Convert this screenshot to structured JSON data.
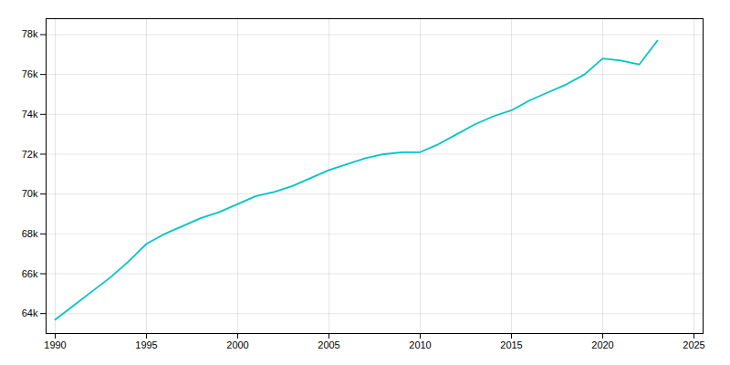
{
  "chart_data": {
    "type": "line",
    "x": [
      1990,
      1991,
      1992,
      1993,
      1994,
      1995,
      1996,
      1997,
      1998,
      1999,
      2000,
      2001,
      2002,
      2003,
      2004,
      2005,
      2006,
      2007,
      2008,
      2009,
      2010,
      2011,
      2012,
      2013,
      2014,
      2015,
      2016,
      2017,
      2018,
      2019,
      2020,
      2021,
      2022,
      2023
    ],
    "values": [
      63700,
      64400,
      65100,
      65800,
      66600,
      67500,
      68000,
      68400,
      68800,
      69100,
      69500,
      69900,
      70100,
      70400,
      70800,
      71200,
      71500,
      71800,
      72000,
      72100,
      72100,
      72500,
      73000,
      73500,
      73900,
      74200,
      74700,
      75100,
      75500,
      76000,
      76800,
      76700,
      76500,
      77700
    ],
    "color": "#00C4C8",
    "xlim": [
      1989.5,
      2025.5
    ],
    "ylim": [
      63000,
      78800
    ],
    "xticks": [
      1990,
      1995,
      2000,
      2005,
      2010,
      2015,
      2020,
      2025
    ],
    "yticks": [
      {
        "value": 64000,
        "label": "64k"
      },
      {
        "value": 66000,
        "label": "66k"
      },
      {
        "value": 68000,
        "label": "68k"
      },
      {
        "value": 70000,
        "label": "70k"
      },
      {
        "value": 72000,
        "label": "72k"
      },
      {
        "value": 74000,
        "label": "74k"
      },
      {
        "value": 76000,
        "label": "76k"
      },
      {
        "value": 78000,
        "label": "78k"
      }
    ],
    "grid": true
  }
}
